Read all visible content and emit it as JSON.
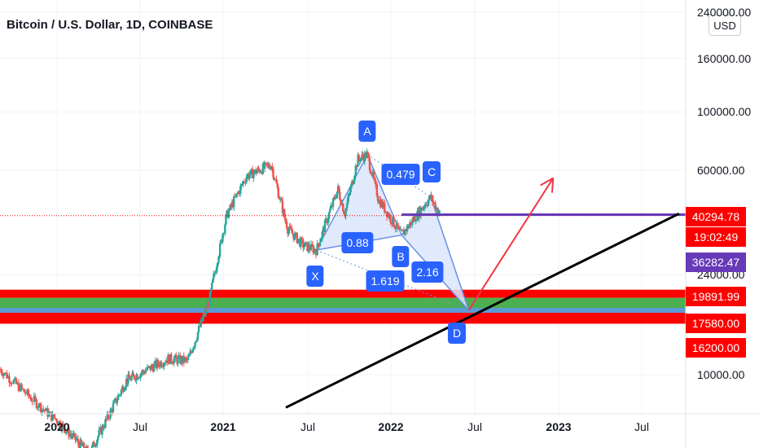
{
  "header": {
    "title": "Bitcoin / U.S. Dollar, 1D, COINBASE",
    "currency_button": "USD"
  },
  "colors": {
    "bg": "#ffffff",
    "grid": "#f0f3fa",
    "candle_up": "#26a69a",
    "candle_down": "#ef5350",
    "pattern_fill": "#dbe6fb",
    "pattern_stroke": "#6b8fe6",
    "label_blue": "#2962ff",
    "zone_red": "#ff0000",
    "zone_green": "#4caf50",
    "line_purple": "#673ab7",
    "arrow_red": "#f23645",
    "trend_black": "#000000"
  },
  "chart_data": {
    "type": "line",
    "subtype": "candlestick_with_harmonic_pattern",
    "y_scale": "log",
    "ylim": [
      6500,
      240000
    ],
    "y_ticks": [
      "240000.00",
      "160000.00",
      "100000.00",
      "60000.00",
      "24000.00",
      "10000.00"
    ],
    "x_ticks": [
      {
        "label": "2020",
        "major": true
      },
      {
        "label": "Jul",
        "major": false
      },
      {
        "label": "2021",
        "major": true
      },
      {
        "label": "Jul",
        "major": false
      },
      {
        "label": "2022",
        "major": true
      },
      {
        "label": "Jul",
        "major": false
      },
      {
        "label": "2023",
        "major": true
      },
      {
        "label": "Jul",
        "major": false
      }
    ],
    "price_series": {
      "x": [
        "2019-10-01",
        "2019-12-15",
        "2020-03-12",
        "2020-06-01",
        "2020-09-01",
        "2020-10-15",
        "2020-12-01",
        "2021-01-08",
        "2021-02-20",
        "2021-04-14",
        "2021-05-19",
        "2021-06-22",
        "2021-07-20",
        "2021-09-06",
        "2021-09-21",
        "2021-10-20",
        "2021-11-10",
        "2021-12-04",
        "2022-01-24",
        "2022-03-28",
        "2022-04-19"
      ],
      "values": [
        10500,
        7200,
        5000,
        9500,
        11500,
        11300,
        19000,
        40000,
        57000,
        63000,
        36000,
        31000,
        29800,
        51000,
        41000,
        66000,
        68700,
        47000,
        34000,
        47400,
        40295
      ]
    },
    "harmonic_points": [
      {
        "label": "X",
        "date": "2021-07-20",
        "price": 29800
      },
      {
        "label": "A",
        "date": "2021-11-10",
        "price": 68700
      },
      {
        "label": "B",
        "date": "2022-01-24",
        "price": 34000
      },
      {
        "label": "C",
        "date": "2022-03-28",
        "price": 47400
      },
      {
        "label": "D",
        "date": "2022-06-18",
        "price": 17580
      }
    ],
    "ratios": [
      {
        "label": "0.479"
      },
      {
        "label": "0.88"
      },
      {
        "label": "1.619"
      },
      {
        "label": "2.16"
      }
    ],
    "horizontal_levels": [
      {
        "price": 40294.78,
        "label": "40294.78",
        "style": "current-price"
      },
      {
        "price": 36282.47,
        "label": "36282.47",
        "style": "purple-line"
      },
      {
        "price": 19891.99,
        "label": "19891.99",
        "style": "zone-top"
      },
      {
        "price": 17580.0,
        "label": "17580.00",
        "style": "zone-mid"
      },
      {
        "price": 16200.0,
        "label": "16200.00",
        "style": "zone-bottom"
      }
    ],
    "countdown": "19:02:49",
    "trendline": {
      "from": {
        "date": "2021-05-15",
        "price": 7500
      },
      "to": {
        "date": "2023-09-20",
        "price": 41000
      }
    },
    "projection_arrow": {
      "from": {
        "date": "2022-06-18",
        "price": 17580
      },
      "to": {
        "date": "2022-12-20",
        "price": 56000
      }
    }
  }
}
